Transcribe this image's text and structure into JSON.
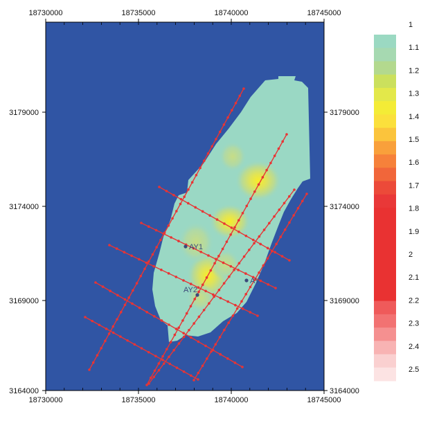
{
  "map": {
    "x_ticks": [
      {
        "value": 18730000,
        "label": "18730000"
      },
      {
        "value": 18735000,
        "label": "18735000"
      },
      {
        "value": 18740000,
        "label": "18740000"
      },
      {
        "value": 18745000,
        "label": "18745000"
      }
    ],
    "y_ticks": [
      {
        "value": 3179000,
        "label": "3179000"
      },
      {
        "value": 3174000,
        "label": "3174000"
      },
      {
        "value": 3169000,
        "label": "3169000"
      },
      {
        "value": 3164000,
        "label": "3164000"
      }
    ],
    "x_range": [
      18730000,
      18745000
    ],
    "y_range": [
      3164000,
      3183000
    ],
    "wells": [
      {
        "name": "AY1",
        "x": 18737600,
        "y": 3171400
      },
      {
        "name": "AY2",
        "x": 18738200,
        "y": 3168900
      },
      {
        "name": "AY",
        "x": 18740800,
        "y": 3169400
      }
    ],
    "colors": {
      "background": "#3055a4",
      "field": "#9ad8c4",
      "line": "#e83434"
    },
    "legend": [
      {
        "label": "1",
        "color": "#9bd9c2"
      },
      {
        "label": "1.1",
        "color": "#a6d9b1"
      },
      {
        "label": "1.2",
        "color": "#b3d98e"
      },
      {
        "label": "1.3",
        "color": "#cbe05d"
      },
      {
        "label": "1.4",
        "color": "#e3e84a"
      },
      {
        "label": "1.5",
        "color": "#f4ec36"
      },
      {
        "label": "1.6",
        "color": "#fbe03c"
      },
      {
        "label": "1.7",
        "color": "#fbc43c"
      },
      {
        "label": "1.8",
        "color": "#f9a03b"
      },
      {
        "label": "1.9",
        "color": "#f6813a"
      },
      {
        "label": "2",
        "color": "#f1663a"
      },
      {
        "label": "2.1",
        "color": "#ec4a39"
      },
      {
        "label": "2.2",
        "color": "#e93838"
      },
      {
        "label": "2.3",
        "color": "#e93232"
      },
      {
        "label": "2.4",
        "color": "#e93232"
      },
      {
        "label": "2.5",
        "color": "#e93232"
      },
      {
        "label": "",
        "color": "#e93232"
      },
      {
        "label": "",
        "color": "#e93232"
      },
      {
        "label": "",
        "color": "#e93232"
      },
      {
        "label": "",
        "color": "#e93232"
      },
      {
        "label": "",
        "color": "#ef5a5a"
      },
      {
        "label": "",
        "color": "#f27272"
      },
      {
        "label": "",
        "color": "#f59090"
      },
      {
        "label": "",
        "color": "#f8b3b3"
      },
      {
        "label": "",
        "color": "#fad0d0"
      },
      {
        "label": "",
        "color": "#fce3e3"
      }
    ],
    "legend_labels": [
      "1",
      "1.1",
      "1.2",
      "1.3",
      "1.4",
      "1.5",
      "1.6",
      "1.7",
      "1.8",
      "1.9",
      "2",
      "2.1",
      "2.2",
      "2.3",
      "2.4",
      "2.5"
    ]
  }
}
